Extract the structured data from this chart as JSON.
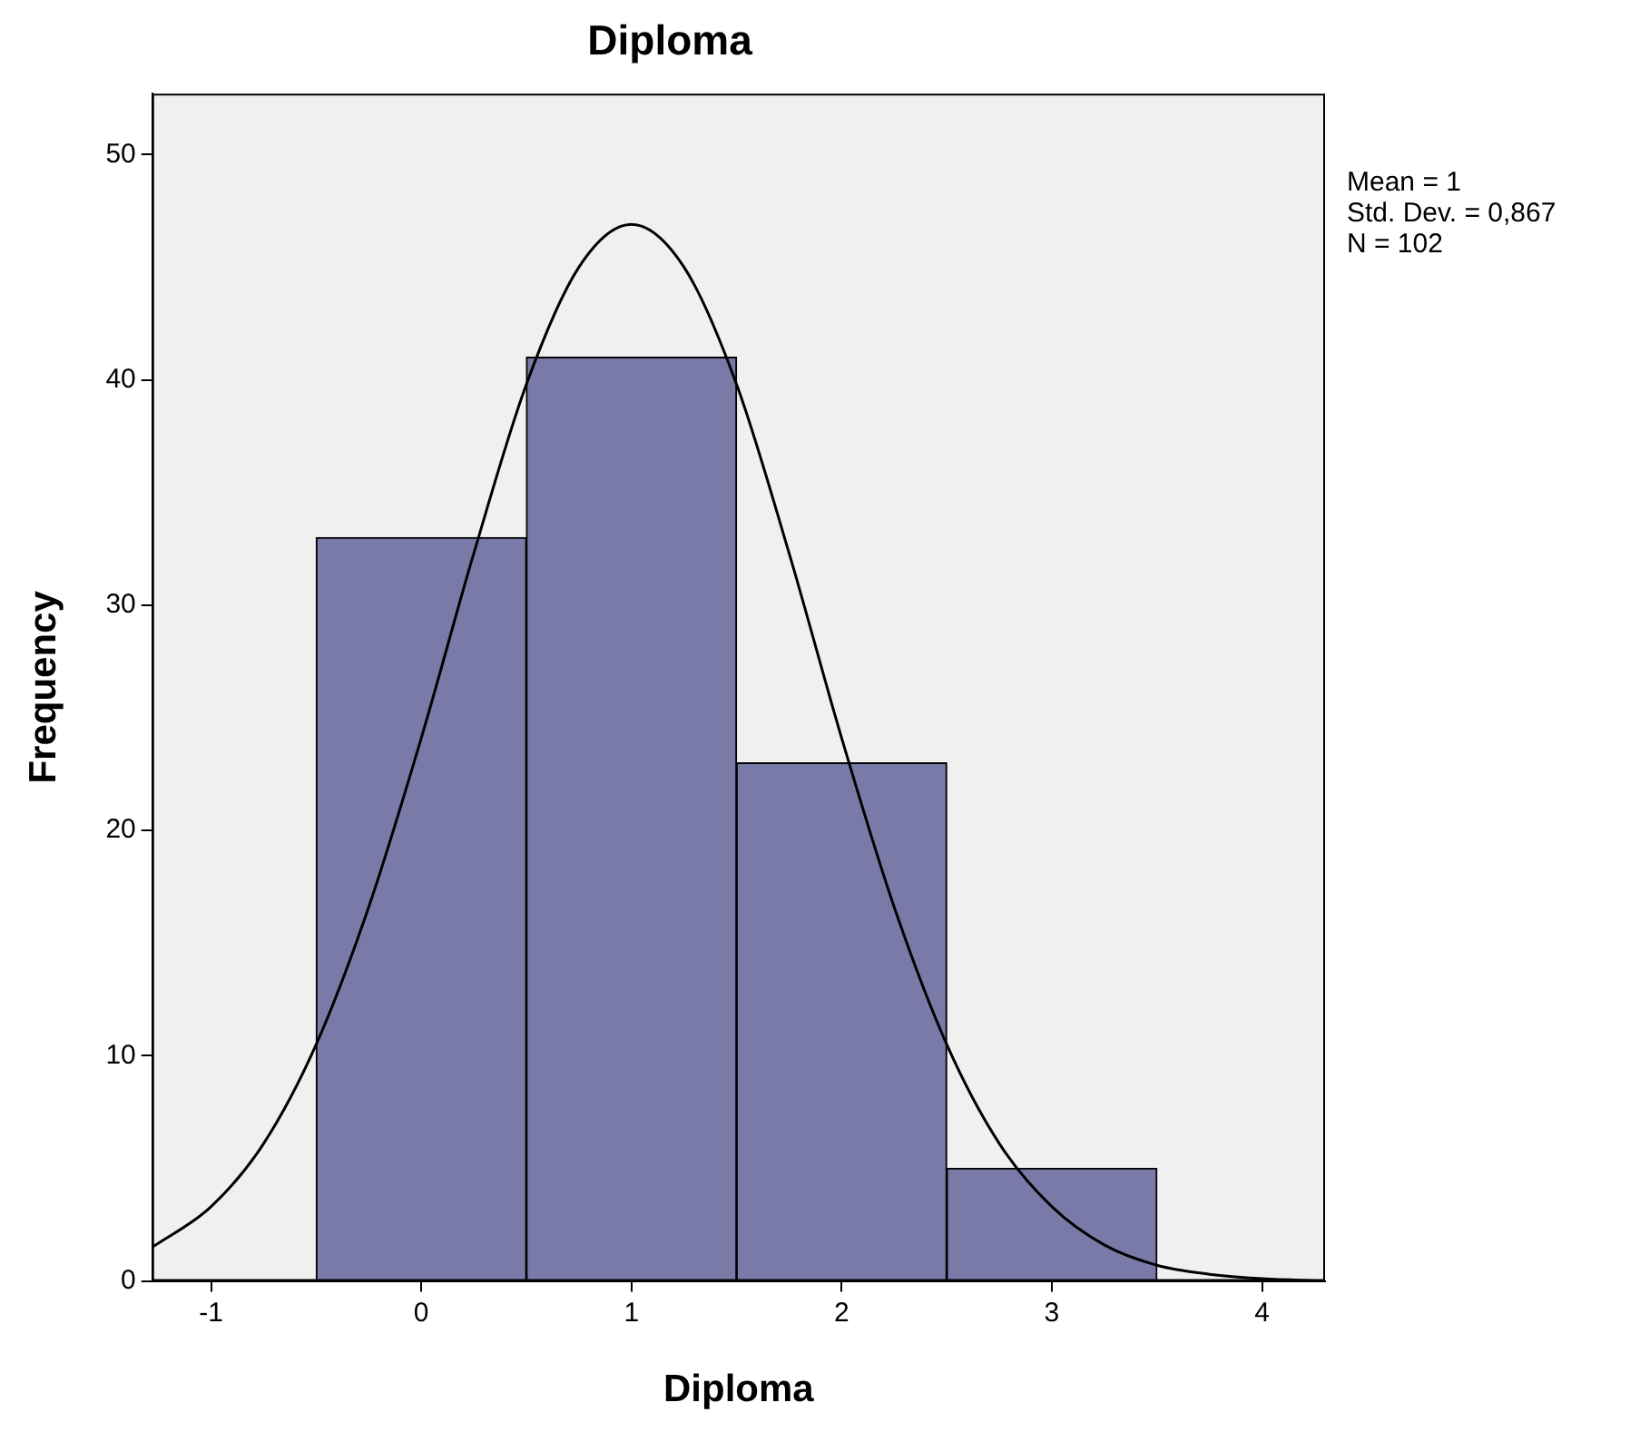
{
  "chart_data": {
    "type": "histogram",
    "title": "Diploma",
    "xlabel": "Diploma",
    "ylabel": "Frequency",
    "bins": [
      -0.5,
      0.5,
      1.5,
      2.5,
      3.5
    ],
    "values": [
      33,
      41,
      23,
      5
    ],
    "color": "#7a7aa8",
    "series": [
      {
        "type": "line",
        "color": "#000000",
        "x": [
          -1.28,
          -1,
          -0.75,
          -0.5,
          -0.25,
          0,
          0.25,
          0.5,
          0.75,
          1,
          1.25,
          1.5,
          1.75,
          2,
          2.25,
          2.5,
          2.75,
          3,
          3.25,
          3.5,
          3.75,
          4,
          4.3
        ],
        "values": [
          1.5,
          3.3,
          6.1,
          10.5,
          16.6,
          24.1,
          32.3,
          39.8,
          45.0,
          46.9,
          45.0,
          39.8,
          32.3,
          24.1,
          16.6,
          10.5,
          6.1,
          3.3,
          1.6,
          0.7,
          0.3,
          0.1,
          0.0
        ]
      }
    ],
    "marker": "none",
    "line_style": "solid",
    "xlim": [
      -1.28,
      4.3
    ],
    "xticks": [
      -1,
      0,
      1,
      2,
      3,
      4
    ],
    "ylim": [
      0,
      52.7
    ],
    "yticks": [
      0,
      10,
      20,
      30,
      40,
      50
    ],
    "grid": false,
    "legend": false,
    "annotations": [
      "Mean = 1",
      "Std. Dev. = 0,867",
      "N = 102"
    ]
  }
}
